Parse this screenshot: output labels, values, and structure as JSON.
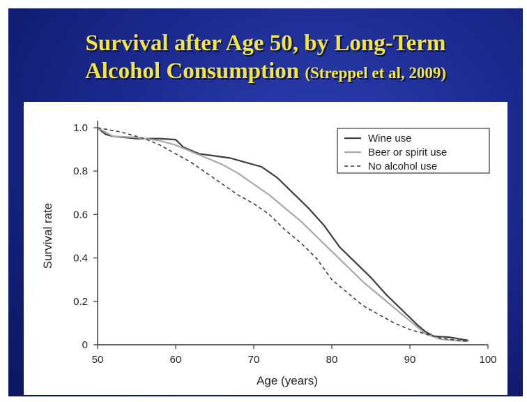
{
  "slide": {
    "title_line1": "Survival after Age 50, by Long-Term",
    "title_line2": "Alcohol Consumption",
    "citation": "(Streppel et al, 2009)"
  },
  "colors": {
    "background": "#1b2a8f",
    "title": "#f5e63a",
    "wine": "#3c3c3c",
    "beer": "#a8a8a8",
    "none": "#3c3c3c"
  },
  "chart_data": {
    "type": "line",
    "title": "Survival after Age 50, by Long-Term Alcohol Consumption",
    "xlabel": "Age (years)",
    "ylabel": "Survival rate",
    "xlim": [
      50,
      100
    ],
    "ylim": [
      0,
      1.0
    ],
    "xticks": [
      50,
      60,
      70,
      80,
      90,
      100
    ],
    "yticks": [
      0,
      0.2,
      0.4,
      0.6,
      0.8,
      1.0
    ],
    "xtick_labels": [
      "50",
      "60",
      "70",
      "80",
      "90",
      "100"
    ],
    "ytick_labels": [
      "0",
      "0.2",
      "0.4",
      "0.6",
      "0.8",
      "1.0"
    ],
    "legend_position": "top-right",
    "series": [
      {
        "name": "Wine use",
        "style": "solid",
        "x": [
          50,
          51,
          52,
          55,
          58,
          60,
          61,
          63,
          65,
          67,
          69,
          71,
          73,
          75,
          77,
          79,
          80,
          81,
          83,
          85,
          87,
          89,
          91,
          92,
          93,
          95,
          97.5
        ],
        "y": [
          1.0,
          0.97,
          0.96,
          0.95,
          0.95,
          0.945,
          0.91,
          0.88,
          0.87,
          0.86,
          0.84,
          0.82,
          0.77,
          0.7,
          0.63,
          0.55,
          0.5,
          0.45,
          0.38,
          0.31,
          0.23,
          0.16,
          0.09,
          0.06,
          0.04,
          0.035,
          0.02
        ]
      },
      {
        "name": "Beer or spirit use",
        "style": "solid",
        "x": [
          50,
          52,
          55,
          58,
          60,
          62,
          64,
          66,
          68,
          70,
          72,
          74,
          76,
          78,
          80,
          82,
          84,
          86,
          88,
          90,
          92,
          94,
          97.5
        ],
        "y": [
          1.0,
          0.96,
          0.955,
          0.94,
          0.92,
          0.89,
          0.86,
          0.83,
          0.79,
          0.74,
          0.69,
          0.63,
          0.57,
          0.5,
          0.43,
          0.36,
          0.29,
          0.23,
          0.17,
          0.11,
          0.05,
          0.025,
          0.015
        ]
      },
      {
        "name": "No alcohol use",
        "style": "dashed",
        "x": [
          50,
          53,
          56,
          58,
          60,
          62,
          64,
          66,
          68,
          70,
          72,
          74,
          76,
          78,
          80,
          82,
          84,
          86,
          88,
          90,
          92,
          94,
          97.5
        ],
        "y": [
          1.0,
          0.98,
          0.95,
          0.92,
          0.88,
          0.84,
          0.79,
          0.74,
          0.69,
          0.65,
          0.6,
          0.53,
          0.47,
          0.4,
          0.3,
          0.24,
          0.18,
          0.14,
          0.1,
          0.07,
          0.05,
          0.03,
          0.015
        ]
      }
    ]
  }
}
